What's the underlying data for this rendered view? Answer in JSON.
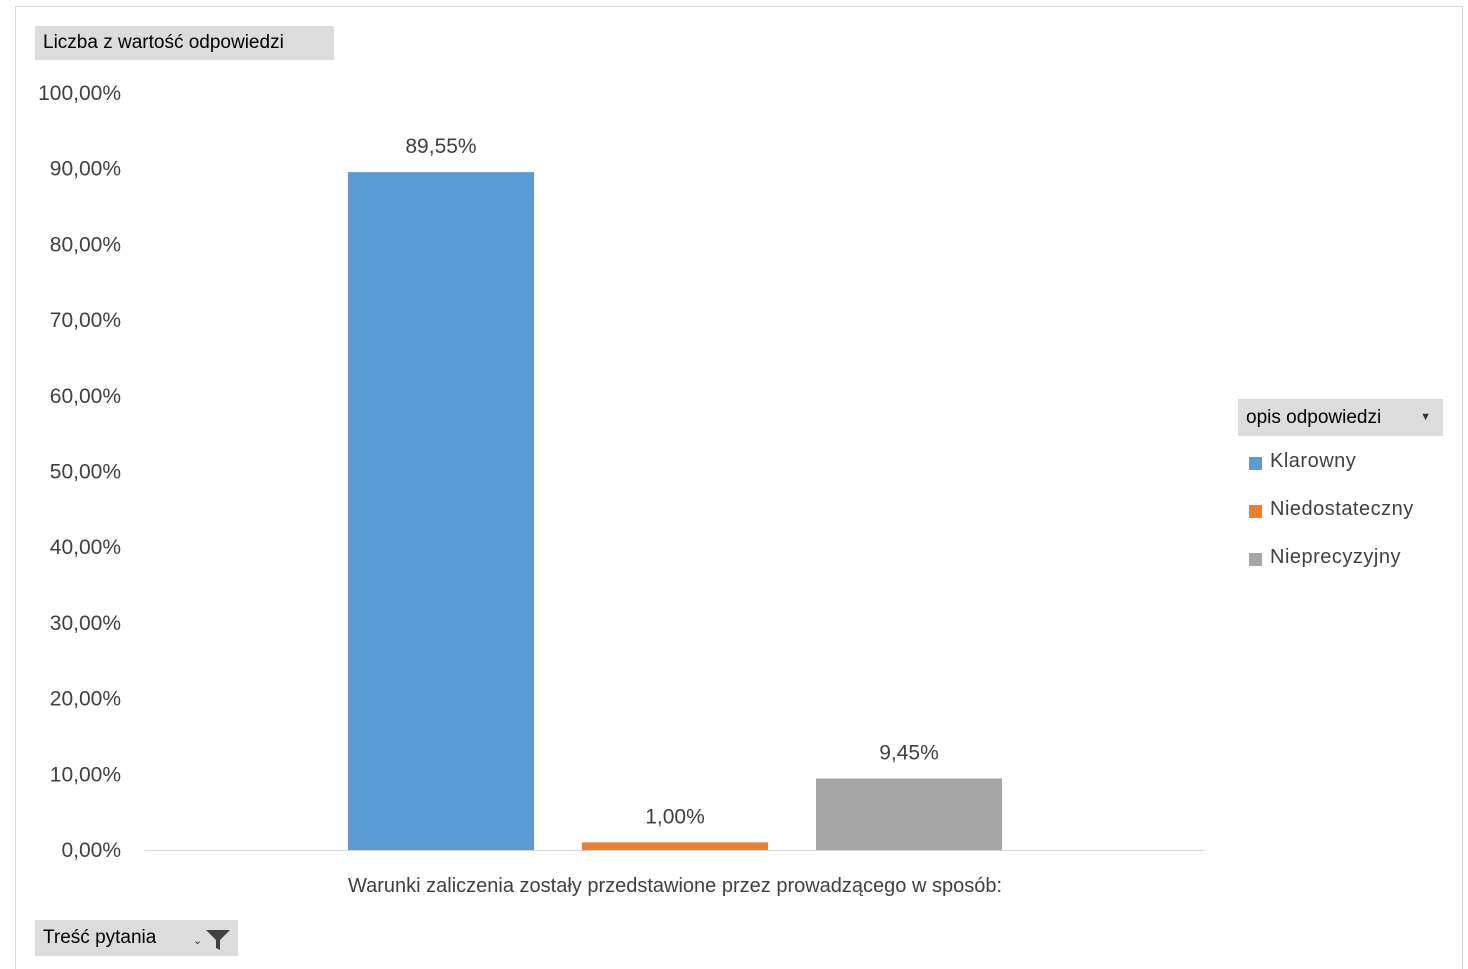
{
  "value_field_button": "Liczba z wartość odpowiedzi",
  "axis_field_button": "Treść pytania",
  "legend_field_button": "opis odpowiedzi",
  "chart_data": {
    "type": "bar",
    "categories": [
      "Warunki zaliczenia zostały przedstawione przez prowadzącego w sposób:"
    ],
    "series": [
      {
        "name": "Klarowny",
        "values": [
          89.55
        ],
        "label": "89,55%",
        "color": "#5b9bd5"
      },
      {
        "name": "Niedostateczny",
        "values": [
          1.0
        ],
        "label": "1,00%",
        "color": "#ed7d31"
      },
      {
        "name": "Nieprecyzyjny",
        "values": [
          9.45
        ],
        "label": "9,45%",
        "color": "#a5a5a5"
      }
    ],
    "ylim": [
      0,
      100
    ],
    "yticks": [
      0,
      10,
      20,
      30,
      40,
      50,
      60,
      70,
      80,
      90,
      100
    ],
    "ytick_labels": [
      "0,00%",
      "10,00%",
      "20,00%",
      "30,00%",
      "40,00%",
      "50,00%",
      "60,00%",
      "70,00%",
      "80,00%",
      "90,00%",
      "100,00%"
    ],
    "grid": false,
    "legend": "right"
  }
}
